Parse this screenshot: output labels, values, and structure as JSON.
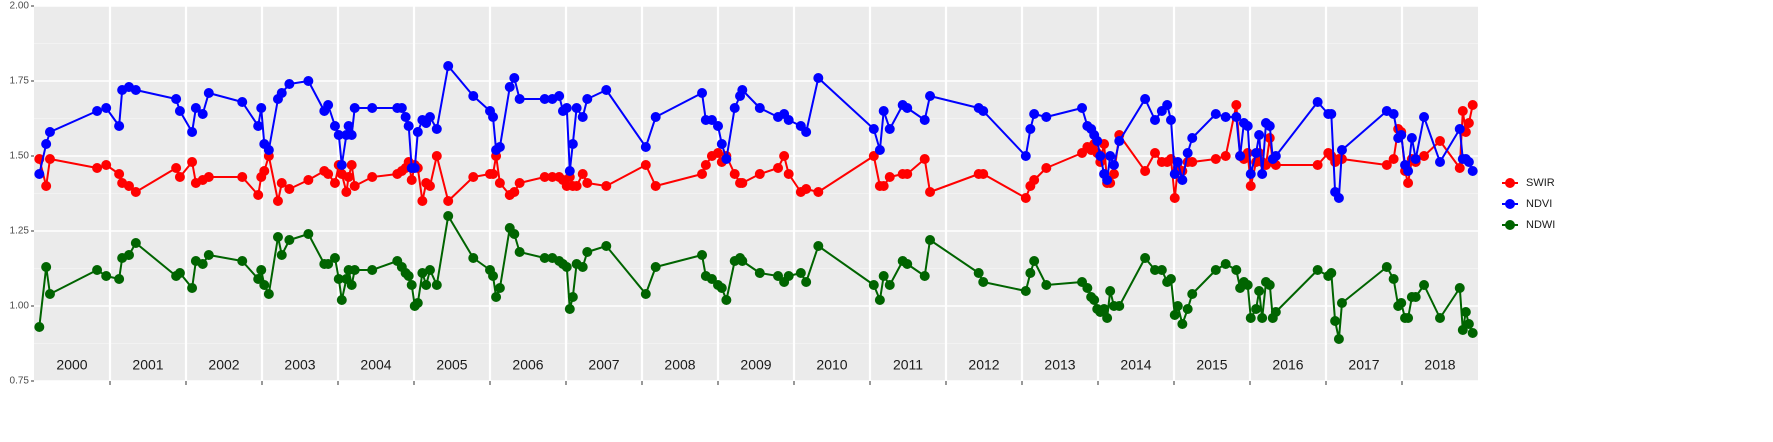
{
  "chart_data": {
    "type": "line",
    "xlim": [
      2000,
      2019
    ],
    "xticks": [
      2001,
      2002,
      2003,
      2004,
      2005,
      2006,
      2007,
      2008,
      2009,
      2010,
      2011,
      2012,
      2013,
      2014,
      2015,
      2016,
      2017,
      2018
    ],
    "year_labels": [
      "2000",
      "2001",
      "2002",
      "2003",
      "2004",
      "2005",
      "2006",
      "2007",
      "2008",
      "2009",
      "2010",
      "2011",
      "2012",
      "2013",
      "2014",
      "2015",
      "2016",
      "2017",
      "2018"
    ],
    "ylim": [
      0.75,
      2.0
    ],
    "yticks": [
      0.75,
      {
        "value": 1.0,
        "label": "1.00"
      },
      1.25,
      {
        "value": 1.5,
        "label": "1.50"
      },
      1.75,
      {
        "value": 2.0,
        "label": "2.00"
      }
    ],
    "grid": true,
    "legend": "right",
    "x": [
      2000.07,
      2000.16,
      2000.21,
      2000.83,
      2000.95,
      2001.12,
      2001.16,
      2001.25,
      2001.34,
      2001.87,
      2001.92,
      2002.08,
      2002.13,
      2002.22,
      2002.3,
      2002.74,
      2002.95,
      2002.99,
      2003.03,
      2003.09,
      2003.21,
      2003.26,
      2003.36,
      2003.61,
      2003.82,
      2003.87,
      2003.96,
      2004.01,
      2004.05,
      2004.11,
      2004.14,
      2004.18,
      2004.22,
      2004.45,
      2004.78,
      2004.84,
      2004.89,
      2004.93,
      2004.97,
      2005.01,
      2005.05,
      2005.11,
      2005.16,
      2005.21,
      2005.3,
      2005.45,
      2005.78,
      2006.0,
      2006.04,
      2006.08,
      2006.13,
      2006.26,
      2006.32,
      2006.39,
      2006.72,
      2006.82,
      2006.91,
      2006.96,
      2007.01,
      2007.05,
      2007.09,
      2007.14,
      2007.22,
      2007.28,
      2007.53,
      2008.05,
      2008.18,
      2008.79,
      2008.84,
      2008.92,
      2009.0,
      2009.05,
      2009.11,
      2009.22,
      2009.29,
      2009.32,
      2009.55,
      2009.79,
      2009.87,
      2009.93,
      2010.09,
      2010.16,
      2010.32,
      2011.05,
      2011.13,
      2011.18,
      2011.26,
      2011.43,
      2011.49,
      2011.72,
      2011.79,
      2012.43,
      2012.49,
      2013.05,
      2013.11,
      2013.16,
      2013.32,
      2013.79,
      2013.86,
      2013.91,
      2013.95,
      2013.99,
      2014.03,
      2014.08,
      2014.12,
      2014.16,
      2014.21,
      2014.28,
      2014.62,
      2014.75,
      2014.84,
      2014.91,
      2014.96,
      2015.01,
      2015.05,
      2015.11,
      2015.18,
      2015.24,
      2015.55,
      2015.68,
      2015.82,
      2015.87,
      2015.92,
      2015.97,
      2016.01,
      2016.08,
      2016.12,
      2016.16,
      2016.21,
      2016.26,
      2016.3,
      2016.34,
      2016.89,
      2017.03,
      2017.07,
      2017.12,
      2017.17,
      2017.21,
      2017.8,
      2017.89,
      2017.95,
      2017.99,
      2018.04,
      2018.08,
      2018.13,
      2018.18,
      2018.29,
      2018.5,
      2018.76,
      2018.8,
      2018.84,
      2018.88,
      2018.93
    ],
    "series": [
      {
        "name": "SWIR",
        "color": "#ff0000",
        "values": [
          1.49,
          1.4,
          1.49,
          1.46,
          1.47,
          1.44,
          1.41,
          1.4,
          1.38,
          1.46,
          1.43,
          1.48,
          1.41,
          1.42,
          1.43,
          1.43,
          1.37,
          1.43,
          1.45,
          1.5,
          1.35,
          1.41,
          1.39,
          1.42,
          1.45,
          1.44,
          1.41,
          1.47,
          1.44,
          1.38,
          1.43,
          1.47,
          1.4,
          1.43,
          1.44,
          1.45,
          1.46,
          1.48,
          1.42,
          1.47,
          1.46,
          1.35,
          1.41,
          1.4,
          1.5,
          1.35,
          1.43,
          1.44,
          1.44,
          1.5,
          1.41,
          1.37,
          1.38,
          1.41,
          1.43,
          1.43,
          1.43,
          1.42,
          1.4,
          1.43,
          1.4,
          1.4,
          1.44,
          1.41,
          1.4,
          1.47,
          1.4,
          1.44,
          1.47,
          1.5,
          1.51,
          1.48,
          1.5,
          1.44,
          1.41,
          1.41,
          1.44,
          1.46,
          1.5,
          1.44,
          1.38,
          1.39,
          1.38,
          1.5,
          1.4,
          1.4,
          1.43,
          1.44,
          1.44,
          1.49,
          1.38,
          1.44,
          1.44,
          1.36,
          1.4,
          1.42,
          1.46,
          1.51,
          1.53,
          1.52,
          1.54,
          1.51,
          1.48,
          1.54,
          1.41,
          1.41,
          1.44,
          1.57,
          1.45,
          1.51,
          1.48,
          1.48,
          1.49,
          1.36,
          1.46,
          1.45,
          1.48,
          1.48,
          1.49,
          1.5,
          1.67,
          1.5,
          1.49,
          1.51,
          1.4,
          1.48,
          1.51,
          1.48,
          1.47,
          1.56,
          1.48,
          1.47,
          1.47,
          1.51,
          1.5,
          1.48,
          1.49,
          1.49,
          1.47,
          1.49,
          1.59,
          1.58,
          1.45,
          1.41,
          1.49,
          1.48,
          1.5,
          1.55,
          1.46,
          1.65,
          1.58,
          1.61,
          1.67
        ]
      },
      {
        "name": "NDVI",
        "color": "#0000ff",
        "values": [
          1.44,
          1.54,
          1.58,
          1.65,
          1.66,
          1.6,
          1.72,
          1.73,
          1.72,
          1.69,
          1.65,
          1.58,
          1.66,
          1.64,
          1.71,
          1.68,
          1.6,
          1.66,
          1.54,
          1.52,
          1.69,
          1.71,
          1.74,
          1.75,
          1.65,
          1.67,
          1.6,
          1.57,
          1.47,
          1.57,
          1.6,
          1.57,
          1.66,
          1.66,
          1.66,
          1.66,
          1.63,
          1.6,
          1.46,
          1.46,
          1.58,
          1.62,
          1.61,
          1.63,
          1.59,
          1.8,
          1.7,
          1.65,
          1.63,
          1.52,
          1.53,
          1.73,
          1.76,
          1.69,
          1.69,
          1.69,
          1.7,
          1.65,
          1.66,
          1.45,
          1.54,
          1.66,
          1.63,
          1.69,
          1.72,
          1.53,
          1.63,
          1.71,
          1.62,
          1.62,
          1.6,
          1.54,
          1.49,
          1.66,
          1.7,
          1.72,
          1.66,
          1.63,
          1.64,
          1.62,
          1.6,
          1.58,
          1.76,
          1.59,
          1.52,
          1.65,
          1.59,
          1.67,
          1.66,
          1.62,
          1.7,
          1.66,
          1.65,
          1.5,
          1.59,
          1.64,
          1.63,
          1.66,
          1.6,
          1.59,
          1.57,
          1.55,
          1.5,
          1.44,
          1.42,
          1.5,
          1.47,
          1.55,
          1.69,
          1.62,
          1.65,
          1.67,
          1.62,
          1.44,
          1.48,
          1.42,
          1.51,
          1.56,
          1.64,
          1.63,
          1.63,
          1.5,
          1.61,
          1.6,
          1.44,
          1.51,
          1.57,
          1.44,
          1.61,
          1.6,
          1.49,
          1.5,
          1.68,
          1.64,
          1.64,
          1.38,
          1.36,
          1.52,
          1.65,
          1.64,
          1.56,
          1.57,
          1.47,
          1.45,
          1.56,
          1.49,
          1.63,
          1.48,
          1.59,
          1.49,
          1.49,
          1.48,
          1.45
        ]
      },
      {
        "name": "NDWI",
        "color": "#006400",
        "values": [
          0.93,
          1.13,
          1.04,
          1.12,
          1.1,
          1.09,
          1.16,
          1.17,
          1.21,
          1.1,
          1.11,
          1.06,
          1.15,
          1.14,
          1.17,
          1.15,
          1.09,
          1.12,
          1.07,
          1.04,
          1.23,
          1.17,
          1.22,
          1.24,
          1.14,
          1.14,
          1.16,
          1.09,
          1.02,
          1.09,
          1.12,
          1.07,
          1.12,
          1.12,
          1.15,
          1.13,
          1.11,
          1.1,
          1.07,
          1.0,
          1.01,
          1.11,
          1.07,
          1.12,
          1.07,
          1.3,
          1.16,
          1.12,
          1.1,
          1.03,
          1.06,
          1.26,
          1.24,
          1.18,
          1.16,
          1.16,
          1.15,
          1.14,
          1.13,
          0.99,
          1.03,
          1.14,
          1.13,
          1.18,
          1.2,
          1.04,
          1.13,
          1.17,
          1.1,
          1.09,
          1.07,
          1.06,
          1.02,
          1.15,
          1.16,
          1.15,
          1.11,
          1.1,
          1.08,
          1.1,
          1.11,
          1.08,
          1.2,
          1.07,
          1.02,
          1.1,
          1.07,
          1.15,
          1.14,
          1.1,
          1.22,
          1.11,
          1.08,
          1.05,
          1.11,
          1.15,
          1.07,
          1.08,
          1.06,
          1.03,
          1.02,
          0.99,
          0.98,
          0.99,
          0.96,
          1.05,
          1.0,
          1.0,
          1.16,
          1.12,
          1.12,
          1.08,
          1.09,
          0.97,
          1.0,
          0.94,
          0.99,
          1.04,
          1.12,
          1.14,
          1.12,
          1.06,
          1.08,
          1.07,
          0.96,
          0.99,
          1.05,
          0.96,
          1.08,
          1.07,
          0.96,
          0.98,
          1.12,
          1.1,
          1.11,
          0.95,
          0.89,
          1.01,
          1.13,
          1.09,
          1.0,
          1.01,
          0.96,
          0.96,
          1.03,
          1.03,
          1.07,
          0.96,
          1.06,
          0.92,
          0.98,
          0.94,
          0.91
        ]
      }
    ]
  }
}
